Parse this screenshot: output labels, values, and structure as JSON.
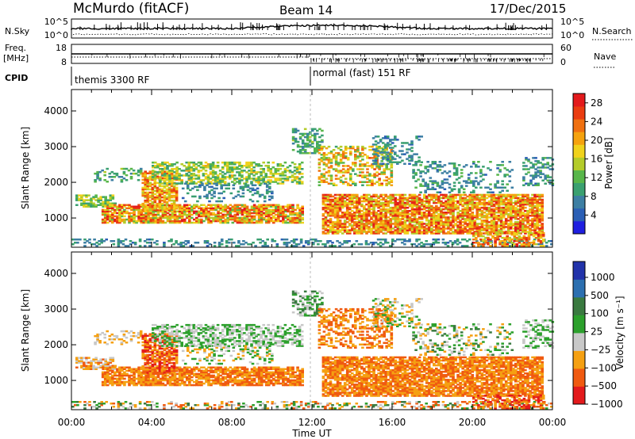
{
  "header": {
    "title": "McMurdo (fitACF)",
    "beam": "Beam 14",
    "date": "17/Dec/2015"
  },
  "status_panels": {
    "nsky_label": "N.Sky",
    "nsky_ticks": [
      "10^5",
      "10^0"
    ],
    "nsearch_label": "N.Search",
    "nsearch_ticks": [
      "10^5",
      "10^0"
    ],
    "freq_label_line1": "Freq.",
    "freq_label_line2": "[MHz]",
    "freq_ticks": [
      "18",
      "8"
    ],
    "nave_label": "Nave",
    "nave_ticks": [
      "60",
      "0"
    ],
    "cpid_label": "CPID",
    "cpid_segments": [
      "themis 3300 RF",
      "normal (fast) 151 RF"
    ]
  },
  "colors": {
    "power": [
      "#1f1fe0",
      "#2b5fb5",
      "#3d7fa3",
      "#3aa070",
      "#58b64a",
      "#b4cc2a",
      "#f0d21c",
      "#f5a20e",
      "#f07010",
      "#ea3c10",
      "#e31a1c"
    ],
    "velocity": [
      "#e31a1c",
      "#f05a10",
      "#f5a012",
      "#c8c8c8",
      "#2ca02c",
      "#3a7a40",
      "#2c6fb0",
      "#2233aa"
    ]
  },
  "chart_data": [
    {
      "type": "heatmap",
      "title": "Power",
      "xlabel": "Time UT",
      "ylabel": "Slant Range [km]",
      "xlim": [
        "00:00",
        "00:00"
      ],
      "x_ticks": [
        "00:00",
        "04:00",
        "08:00",
        "12:00",
        "16:00",
        "20:00",
        "00:00"
      ],
      "ylim": [
        180,
        4600
      ],
      "y_ticks": [
        1000,
        2000,
        3000,
        4000
      ],
      "colorbar_label": "Power [dB]",
      "colorbar_ticks": [
        4,
        8,
        12,
        16,
        20,
        24,
        28
      ],
      "colorbar_range": [
        0,
        30
      ],
      "features": [
        {
          "time_range_h": [
            0,
            24
          ],
          "range_km": [
            200,
            400
          ],
          "level": "low (4-8 dB)"
        },
        {
          "time_range_h": [
            1.5,
            11
          ],
          "range_km": [
            900,
            1300
          ],
          "level": "moderate to high (16-28 dB)"
        },
        {
          "time_range_h": [
            4,
            11
          ],
          "range_km": [
            2000,
            2500
          ],
          "level": "moderate (12-20 dB)"
        },
        {
          "time_range_h": [
            12.5,
            23
          ],
          "range_km": [
            600,
            1600
          ],
          "level": "high (20-30 dB)"
        }
      ]
    },
    {
      "type": "heatmap",
      "title": "Velocity",
      "xlabel": "Time UT",
      "ylabel": "Slant Range [km]",
      "xlim": [
        "00:00",
        "00:00"
      ],
      "x_ticks": [
        "00:00",
        "04:00",
        "08:00",
        "12:00",
        "16:00",
        "20:00",
        "00:00"
      ],
      "ylim": [
        180,
        4600
      ],
      "y_ticks": [
        1000,
        2000,
        3000,
        4000
      ],
      "colorbar_label": "Velocity [m s⁻¹]",
      "colorbar_ticks": [
        "1000",
        "500",
        "100",
        "25",
        "−25",
        "−100",
        "−500",
        "−1000"
      ],
      "features": [
        {
          "time_range_h": [
            1.5,
            11
          ],
          "range_km": [
            800,
            1400
          ],
          "level": "−100 to −500 m/s"
        },
        {
          "time_range_h": [
            4,
            11
          ],
          "range_km": [
            2000,
            2500
          ],
          "level": "−25 to 25 m/s (ground scatter)"
        },
        {
          "time_range_h": [
            12.5,
            23
          ],
          "range_km": [
            600,
            1600
          ],
          "level": "−100 to −500 m/s"
        }
      ]
    }
  ]
}
